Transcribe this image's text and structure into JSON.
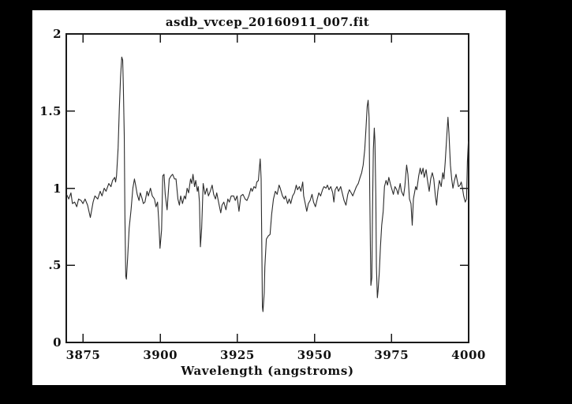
{
  "window": {
    "background_color": "#000000",
    "canvas_color": "#ffffff",
    "axis_color": "#1a1a1a",
    "text_color": "#111111"
  },
  "chart_data": {
    "type": "line",
    "title": "asdb_vvcep_20160911_007.fit",
    "xlabel": "Wavelength (angstroms)",
    "ylabel": "",
    "xlim": [
      3869.5,
      4000
    ],
    "ylim": [
      0,
      2
    ],
    "grid": false,
    "legend": "none",
    "line_color": "#2b2b2b",
    "xticks": {
      "values": [
        3875,
        3900,
        3925,
        3950,
        3975,
        4000
      ],
      "labels": [
        "3875",
        "3900",
        "3925",
        "3950",
        "3975",
        "4000"
      ]
    },
    "yticks": {
      "values": [
        0,
        0.5,
        1,
        1.5,
        2
      ],
      "labels": [
        "0",
        ".5",
        "1",
        "1.5",
        "2"
      ]
    },
    "notable_features": [
      {
        "wavelength": 3888,
        "kind": "emission peak",
        "flux": 1.85
      },
      {
        "wavelength": 3889,
        "kind": "absorption",
        "flux": 0.41
      },
      {
        "wavelength": 3900,
        "kind": "absorption",
        "flux": 0.61
      },
      {
        "wavelength": 3913,
        "kind": "absorption",
        "flux": 0.62
      },
      {
        "wavelength": 3933,
        "kind": "Ca II K deep absorption with emission spike",
        "flux": 0.2
      },
      {
        "wavelength": 3967,
        "kind": "Ca II H double emission",
        "flux": 1.57
      },
      {
        "wavelength": 3970,
        "kind": "absorption",
        "flux": 0.29
      },
      {
        "wavelength": 3993,
        "kind": "emission peak",
        "flux": 1.46
      }
    ],
    "series": [
      {
        "name": "spectrum",
        "x": [
          3869.6,
          3870.3,
          3871.0,
          3871.5,
          3872.2,
          3872.9,
          3873.5,
          3874.3,
          3874.9,
          3875.6,
          3876.4,
          3877.3,
          3878.2,
          3878.8,
          3879.7,
          3880.5,
          3881.1,
          3881.8,
          3882.4,
          3883.3,
          3884.0,
          3884.5,
          3885.2,
          3885.5,
          3885.8,
          3886.3,
          3886.7,
          3887.1,
          3887.5,
          3887.8,
          3888.0,
          3888.3,
          3888.5,
          3888.8,
          3889.0,
          3889.4,
          3889.9,
          3890.5,
          3891.1,
          3891.6,
          3892.0,
          3892.5,
          3893.1,
          3893.5,
          3894.0,
          3894.5,
          3895.0,
          3895.7,
          3896.1,
          3896.8,
          3897.4,
          3898.1,
          3898.6,
          3899.1,
          3899.5,
          3899.9,
          3900.4,
          3900.8,
          3901.2,
          3901.6,
          3902.2,
          3902.9,
          3903.5,
          3904.0,
          3904.6,
          3905.1,
          3905.7,
          3906.2,
          3906.6,
          3907.2,
          3907.8,
          3908.2,
          3908.7,
          3909.2,
          3909.8,
          3910.2,
          3910.6,
          3911.1,
          3911.5,
          3912.0,
          3912.3,
          3912.7,
          3913.0,
          3913.4,
          3913.9,
          3914.5,
          3915.1,
          3915.6,
          3916.2,
          3916.8,
          3917.3,
          3917.9,
          3918.3,
          3919.0,
          3919.6,
          3920.0,
          3920.6,
          3921.3,
          3921.9,
          3922.4,
          3923.0,
          3923.8,
          3924.3,
          3924.9,
          3925.5,
          3926.1,
          3926.8,
          3927.5,
          3928.1,
          3928.7,
          3929.4,
          3929.8,
          3930.4,
          3930.9,
          3931.3,
          3931.8,
          3932.1,
          3932.4,
          3932.7,
          3932.9,
          3933.1,
          3933.3,
          3933.7,
          3933.9,
          3934.4,
          3935.0,
          3935.6,
          3936.1,
          3936.7,
          3937.3,
          3937.9,
          3938.5,
          3938.9,
          3939.6,
          3940.2,
          3940.6,
          3941.3,
          3941.8,
          3942.3,
          3942.9,
          3943.5,
          3944.1,
          3944.5,
          3945.1,
          3945.6,
          3946.2,
          3946.5,
          3947.0,
          3947.5,
          3948.0,
          3948.6,
          3949.2,
          3949.7,
          3950.3,
          3950.9,
          3951.4,
          3952.0,
          3952.6,
          3953.1,
          3953.7,
          3954.2,
          3954.7,
          3955.3,
          3955.9,
          3956.3,
          3956.7,
          3957.3,
          3957.8,
          3958.5,
          3959.1,
          3959.6,
          3960.2,
          3960.8,
          3961.3,
          3961.9,
          3962.4,
          3963.0,
          3963.6,
          3964.2,
          3964.8,
          3965.3,
          3965.8,
          3966.3,
          3966.7,
          3967.1,
          3967.4,
          3967.7,
          3967.9,
          3968.2,
          3968.3,
          3968.6,
          3968.8,
          3969.1,
          3969.4,
          3969.6,
          3969.9,
          3970.1,
          3970.4,
          3970.6,
          3971.0,
          3971.4,
          3971.8,
          3972.3,
          3972.7,
          3973.2,
          3973.7,
          3974.1,
          3974.6,
          3975.0,
          3975.6,
          3976.1,
          3976.7,
          3977.1,
          3977.8,
          3978.2,
          3978.9,
          3979.3,
          3979.9,
          3980.3,
          3980.8,
          3981.3,
          3981.7,
          3982.1,
          3982.8,
          3983.2,
          3983.8,
          3984.3,
          3984.7,
          3985.2,
          3985.6,
          3986.2,
          3986.6,
          3987.2,
          3987.7,
          3988.2,
          3988.7,
          3989.2,
          3989.6,
          3990.0,
          3990.5,
          3991.1,
          3991.6,
          3992.0,
          3992.4,
          3992.9,
          3993.3,
          3993.6,
          3994.1,
          3994.5,
          3994.9,
          3995.4,
          3995.9,
          3996.3,
          3996.7,
          3997.2,
          3997.6,
          3998.0,
          3998.4,
          3998.9,
          3999.3,
          3999.6,
          3999.9
        ],
        "y": [
          0.96,
          0.93,
          0.97,
          0.9,
          0.91,
          0.88,
          0.93,
          0.92,
          0.9,
          0.93,
          0.89,
          0.81,
          0.91,
          0.95,
          0.93,
          0.98,
          0.95,
          1.0,
          0.98,
          1.03,
          1.01,
          1.05,
          1.07,
          1.04,
          1.08,
          1.26,
          1.51,
          1.72,
          1.85,
          1.83,
          1.67,
          1.34,
          0.83,
          0.43,
          0.41,
          0.55,
          0.74,
          0.86,
          1.0,
          1.06,
          1.02,
          0.96,
          0.92,
          0.97,
          0.94,
          0.9,
          0.91,
          0.98,
          0.95,
          1.0,
          0.95,
          0.93,
          0.88,
          0.91,
          0.79,
          0.61,
          0.73,
          1.08,
          1.09,
          0.96,
          0.86,
          1.06,
          1.08,
          1.09,
          1.06,
          1.06,
          0.93,
          0.89,
          0.95,
          0.9,
          0.95,
          0.93,
          1.0,
          0.97,
          1.06,
          1.03,
          1.09,
          1.01,
          1.05,
          0.98,
          1.01,
          0.91,
          0.62,
          0.74,
          1.03,
          0.96,
          1.0,
          0.95,
          0.98,
          1.02,
          0.96,
          0.93,
          0.97,
          0.9,
          0.84,
          0.89,
          0.91,
          0.86,
          0.93,
          0.91,
          0.95,
          0.95,
          0.92,
          0.95,
          0.85,
          0.95,
          0.96,
          0.93,
          0.92,
          0.95,
          1.0,
          0.98,
          1.01,
          1.0,
          1.04,
          1.05,
          1.12,
          1.19,
          1.06,
          0.65,
          0.23,
          0.2,
          0.32,
          0.49,
          0.67,
          0.69,
          0.7,
          0.83,
          0.93,
          0.98,
          0.96,
          1.02,
          1.0,
          0.95,
          0.93,
          0.95,
          0.9,
          0.93,
          0.9,
          0.95,
          0.97,
          1.02,
          0.99,
          1.01,
          0.98,
          1.04,
          0.95,
          0.9,
          0.85,
          0.9,
          0.92,
          0.96,
          0.91,
          0.88,
          0.93,
          0.97,
          0.95,
          0.99,
          1.01,
          1.0,
          1.02,
          0.99,
          1.01,
          0.97,
          0.91,
          0.99,
          1.01,
          0.98,
          1.01,
          0.96,
          0.92,
          0.89,
          0.96,
          0.99,
          0.97,
          0.95,
          0.98,
          1.01,
          1.03,
          1.07,
          1.1,
          1.15,
          1.25,
          1.39,
          1.53,
          1.57,
          1.46,
          1.0,
          0.52,
          0.37,
          0.42,
          0.83,
          1.25,
          1.39,
          1.31,
          0.93,
          0.49,
          0.29,
          0.33,
          0.45,
          0.62,
          0.76,
          0.85,
          1.01,
          1.05,
          1.02,
          1.07,
          1.03,
          1.0,
          0.96,
          1.01,
          0.99,
          0.96,
          1.03,
          0.98,
          0.95,
          1.01,
          1.15,
          1.09,
          0.93,
          0.9,
          0.76,
          0.93,
          1.01,
          0.99,
          1.08,
          1.13,
          1.09,
          1.13,
          1.07,
          1.12,
          1.06,
          0.98,
          1.06,
          1.1,
          1.06,
          0.95,
          0.89,
          0.98,
          1.05,
          1.01,
          1.1,
          1.06,
          1.17,
          1.34,
          1.46,
          1.36,
          1.15,
          1.06,
          1.0,
          1.05,
          1.09,
          1.05,
          1.01,
          1.02,
          1.04,
          1.0,
          0.95,
          0.91,
          0.93,
          1.17,
          1.3
        ]
      }
    ]
  }
}
